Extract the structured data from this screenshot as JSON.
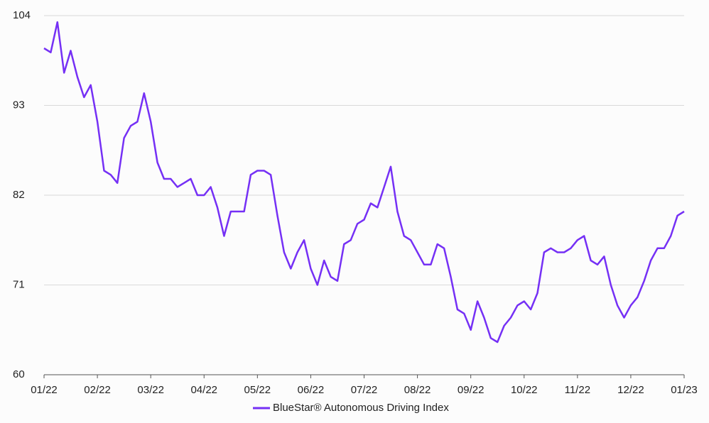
{
  "chart_data": {
    "type": "line",
    "categories": [
      "01/22",
      null,
      null,
      null,
      null,
      null,
      null,
      null,
      "02/22",
      null,
      null,
      null,
      null,
      null,
      null,
      null,
      "03/22",
      null,
      null,
      null,
      null,
      null,
      null,
      null,
      "04/22",
      null,
      null,
      null,
      null,
      null,
      null,
      null,
      "05/22",
      null,
      null,
      null,
      null,
      null,
      null,
      null,
      "06/22",
      null,
      null,
      null,
      null,
      null,
      null,
      null,
      "07/22",
      null,
      null,
      null,
      null,
      null,
      null,
      null,
      "08/22",
      null,
      null,
      null,
      null,
      null,
      null,
      null,
      "09/22",
      null,
      null,
      null,
      null,
      null,
      null,
      null,
      "10/22",
      null,
      null,
      null,
      null,
      null,
      null,
      null,
      "11/22",
      null,
      null,
      null,
      null,
      null,
      null,
      null,
      "12/22",
      null,
      null,
      null,
      null,
      null,
      null,
      null,
      "01/23"
    ],
    "series": [
      {
        "name": "BlueStar® Autonomous Driving Index",
        "color": "#7530f5",
        "values": [
          100,
          99.5,
          103.2,
          97,
          99.7,
          96.5,
          94,
          95.5,
          91,
          85,
          84.5,
          83.5,
          89,
          90.5,
          91,
          94.5,
          91,
          86,
          84,
          84,
          83,
          83.5,
          84,
          82,
          82,
          83,
          80.5,
          77,
          80,
          80,
          80,
          84.5,
          85,
          85,
          84.5,
          79.5,
          75,
          73,
          75,
          76.5,
          73,
          71,
          74,
          72,
          71.5,
          76,
          76.5,
          78.5,
          79,
          81,
          80.5,
          83,
          85.5,
          80,
          77,
          76.5,
          75,
          73.5,
          73.5,
          76,
          75.5,
          72,
          68,
          67.5,
          65.5,
          69,
          67,
          64.5,
          64,
          66,
          67,
          68.5,
          69,
          68,
          70,
          75,
          75.5,
          75,
          75,
          75.5,
          76.5,
          77,
          74,
          73.5,
          74.5,
          71,
          68.5,
          67,
          68.5,
          69.5,
          71.5,
          74,
          75.5,
          75.5,
          77,
          79.5,
          80
        ]
      }
    ],
    "ylim": [
      60,
      104
    ],
    "yticks": [
      60,
      71,
      82,
      93,
      104
    ],
    "grid": true,
    "legend": "bottom"
  }
}
